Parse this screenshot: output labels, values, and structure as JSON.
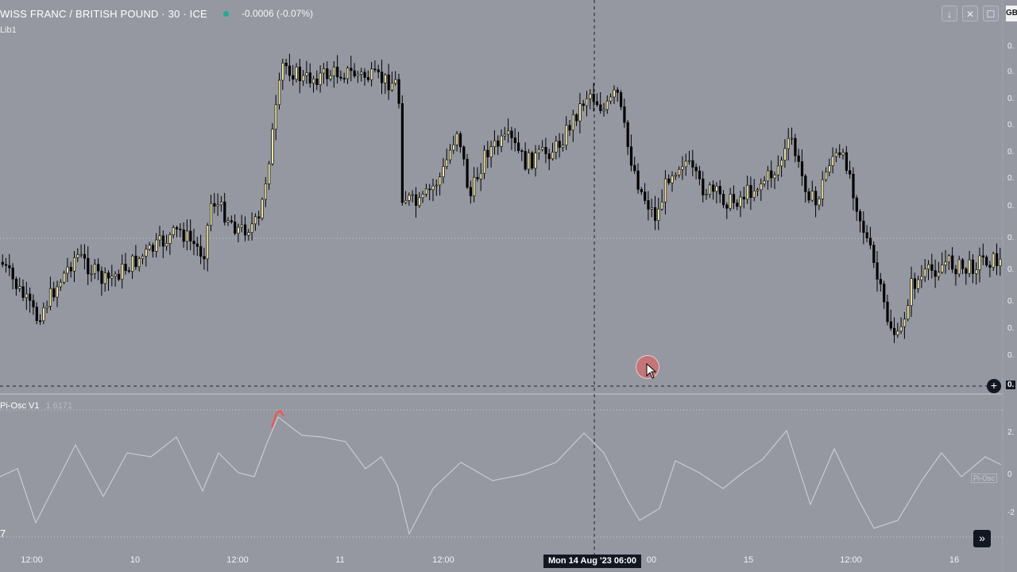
{
  "header": {
    "title": "WISS FRANC / BRITISH POUND · 30 · ICE",
    "change": "-0.0006 (-0.07%)",
    "indicator1": "Lib1",
    "symbol_box": "GB"
  },
  "toolbar": {
    "download_icon": "↓",
    "close_icon": "✕",
    "maximize_icon": "☐"
  },
  "indicator2": {
    "name": "Pi-Osc V1",
    "value": "1.6171",
    "tag": "Pi-Osc"
  },
  "price_axis": {
    "labels": [
      "0.",
      "0.",
      "0.",
      "0.",
      "0.",
      "0.",
      "0.",
      "0.",
      "0.",
      "0.",
      "0.",
      "0.",
      "0."
    ],
    "highlight": "0."
  },
  "osc_axis": {
    "labels": [
      "2.",
      "0",
      "-2"
    ]
  },
  "time_axis": {
    "labels": [
      "12:00",
      "10",
      "12:00",
      "11",
      "12:00",
      "00",
      "15",
      "12:00",
      "16"
    ],
    "crosshair_label": "Mon 14 Aug '23   06:00"
  },
  "misc": {
    "left_edge_char": "7"
  },
  "colors": {
    "background": "#9598a1",
    "up_candle": "#f0e6a2",
    "down_candle": "#000000",
    "osc_line": "#c8cbd2",
    "osc_signal": "#ff4d4d"
  }
}
